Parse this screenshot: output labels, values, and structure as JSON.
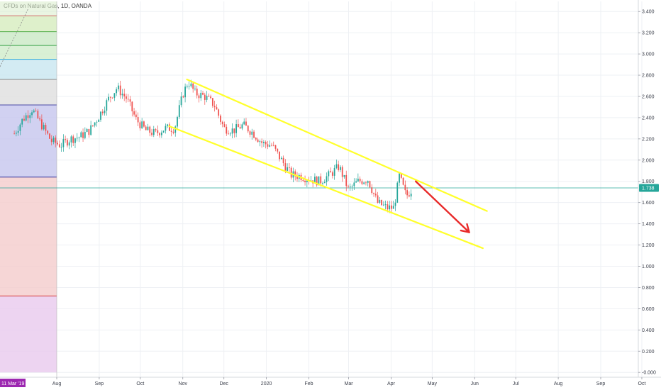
{
  "window": {
    "symbol_title": "CFDs on Natural Gas, 1D, OANDA"
  },
  "price_axis": {
    "ticks": [
      "3.400",
      "3.200",
      "3.000",
      "2.800",
      "2.600",
      "2.400",
      "2.200",
      "2.000",
      "1.800",
      "1.600",
      "1.400",
      "1.200",
      "1.000",
      "0.800",
      "0.600",
      "0.400",
      "0.200",
      "-0.000"
    ],
    "current_price_label": "1.738",
    "current_price_color": "#26a69a"
  },
  "time_axis": {
    "start_date_label": "11 Mar '19",
    "start_date_color": "#9c27b0",
    "ticks": [
      "Aug",
      "Sep",
      "Oct",
      "Nov",
      "Dec",
      "2020",
      "Feb",
      "Mar",
      "Apr",
      "May",
      "Jun",
      "Jul",
      "Aug",
      "Sep",
      "Oct"
    ]
  },
  "colors": {
    "up_candle": "#26a69a",
    "down_candle": "#ef5350",
    "channel_lines": "#ffff2b",
    "forecast_arrow": "#e82a2a",
    "grid": "#eef0f4"
  },
  "chart_data": {
    "type": "candlestick",
    "title": "CFDs on Natural Gas, 1D, OANDA",
    "xlabel": "",
    "ylabel": "",
    "ylim": [
      0.0,
      3.45
    ],
    "grid": true,
    "last_price": 1.738,
    "close_path": [
      [
        "2019-07-01",
        2.25
      ],
      [
        "2019-07-07",
        2.38
      ],
      [
        "2019-07-14",
        2.48
      ],
      [
        "2019-07-21",
        2.33
      ],
      [
        "2019-07-28",
        2.18
      ],
      [
        "2019-08-04",
        2.14
      ],
      [
        "2019-08-11",
        2.2
      ],
      [
        "2019-08-18",
        2.22
      ],
      [
        "2019-08-25",
        2.28
      ],
      [
        "2019-09-01",
        2.42
      ],
      [
        "2019-09-08",
        2.58
      ],
      [
        "2019-09-14",
        2.68
      ],
      [
        "2019-09-21",
        2.58
      ],
      [
        "2019-09-28",
        2.38
      ],
      [
        "2019-10-05",
        2.28
      ],
      [
        "2019-10-12",
        2.25
      ],
      [
        "2019-10-19",
        2.3
      ],
      [
        "2019-10-26",
        2.3
      ],
      [
        "2019-11-01",
        2.62
      ],
      [
        "2019-11-05",
        2.74
      ],
      [
        "2019-11-10",
        2.63
      ],
      [
        "2019-11-17",
        2.6
      ],
      [
        "2019-11-24",
        2.52
      ],
      [
        "2019-12-01",
        2.3
      ],
      [
        "2019-12-08",
        2.28
      ],
      [
        "2019-12-15",
        2.33
      ],
      [
        "2019-12-22",
        2.26
      ],
      [
        "2019-12-29",
        2.16
      ],
      [
        "2020-01-05",
        2.14
      ],
      [
        "2020-01-12",
        2.0
      ],
      [
        "2020-01-19",
        1.86
      ],
      [
        "2020-01-26",
        1.85
      ],
      [
        "2020-02-02",
        1.82
      ],
      [
        "2020-02-09",
        1.8
      ],
      [
        "2020-02-16",
        1.86
      ],
      [
        "2020-02-23",
        1.94
      ],
      [
        "2020-03-01",
        1.72
      ],
      [
        "2020-03-08",
        1.8
      ],
      [
        "2020-03-15",
        1.82
      ],
      [
        "2020-03-22",
        1.6
      ],
      [
        "2020-03-29",
        1.55
      ],
      [
        "2020-04-03",
        1.55
      ],
      [
        "2020-04-07",
        1.85
      ],
      [
        "2020-04-12",
        1.66
      ],
      [
        "2020-04-17",
        1.738
      ]
    ],
    "drawings": [
      {
        "name": "channel-upper",
        "from": [
          "2019-11-04",
          2.76
        ],
        "to": [
          "2020-06-10",
          1.52
        ]
      },
      {
        "name": "channel-lower",
        "from": [
          "2019-10-22",
          2.32
        ],
        "to": [
          "2020-06-07",
          1.17
        ]
      },
      {
        "name": "forecast-arrow",
        "from": [
          "2020-04-19",
          1.8
        ],
        "to": [
          "2020-05-28",
          1.32
        ]
      }
    ],
    "horizontal_bands": [
      {
        "from": 3.36,
        "to": 3.21,
        "color": "#d6ecbe"
      },
      {
        "from": 3.21,
        "to": 3.08,
        "color": "#c9e8c4"
      },
      {
        "from": 3.08,
        "to": 2.95,
        "color": "#cfeccb"
      },
      {
        "from": 2.95,
        "to": 2.76,
        "color": "#c8e6f0"
      },
      {
        "from": 2.76,
        "to": 2.52,
        "color": "#dedede"
      },
      {
        "from": 2.52,
        "to": 1.84,
        "color": "#c6c6ee"
      },
      {
        "from": 1.84,
        "to": 0.72,
        "color": "#f4cccc"
      },
      {
        "from": 0.72,
        "to": 0.0,
        "color": "#e8c9ee"
      }
    ],
    "band_lines": [
      3.36,
      3.21,
      3.08,
      2.95,
      2.76,
      2.52,
      1.84,
      0.72
    ]
  }
}
